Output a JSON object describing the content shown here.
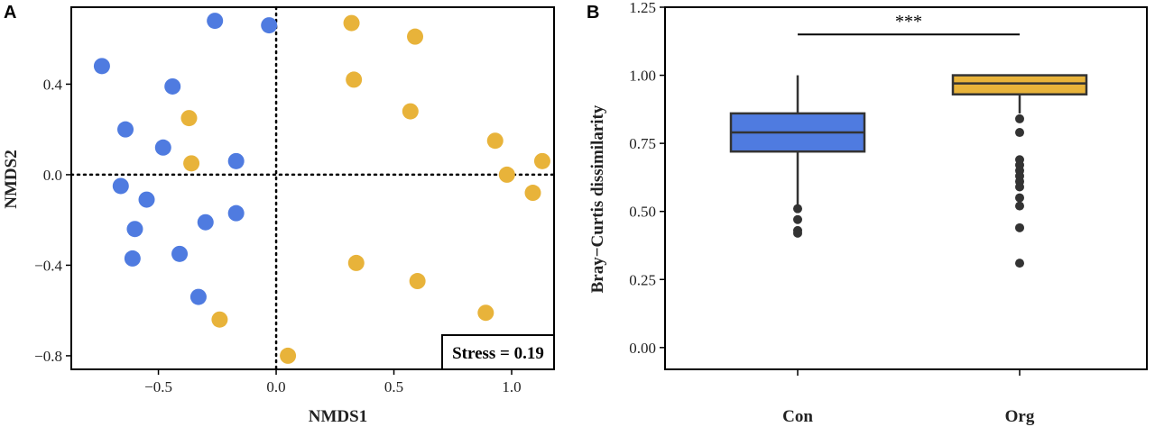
{
  "chart_data": [
    {
      "type": "scatter",
      "panel": "A",
      "xlabel": "NMDS1",
      "ylabel": "NMDS2",
      "xlim": [
        -0.87,
        1.18
      ],
      "ylim": [
        -0.86,
        0.74
      ],
      "xticks": [
        -0.5,
        0.0,
        0.5,
        1.0
      ],
      "xtick_labels": [
        "−0.5",
        "0.0",
        "0.5",
        "1.0"
      ],
      "yticks": [
        -0.8,
        -0.4,
        0.0,
        0.4
      ],
      "ytick_labels": [
        "−0.8",
        "−0.4",
        "0.0",
        "0.4"
      ],
      "reference_lines": {
        "x": 0,
        "y": 0,
        "style": "dotted"
      },
      "annotation": "Stress = 0.19",
      "annotation_position": "bottom-right",
      "grid": false,
      "series": [
        {
          "color": "#4f7be0",
          "points": [
            [
              -0.26,
              0.68
            ],
            [
              -0.03,
              0.66
            ],
            [
              -0.74,
              0.48
            ],
            [
              -0.44,
              0.39
            ],
            [
              -0.64,
              0.2
            ],
            [
              -0.48,
              0.12
            ],
            [
              -0.17,
              0.06
            ],
            [
              -0.66,
              -0.05
            ],
            [
              -0.55,
              -0.11
            ],
            [
              -0.17,
              -0.17
            ],
            [
              -0.3,
              -0.21
            ],
            [
              -0.6,
              -0.24
            ],
            [
              -0.41,
              -0.35
            ],
            [
              -0.61,
              -0.37
            ],
            [
              -0.33,
              -0.54
            ]
          ]
        },
        {
          "color": "#e8b33a",
          "points": [
            [
              0.32,
              0.67
            ],
            [
              0.59,
              0.61
            ],
            [
              0.33,
              0.42
            ],
            [
              0.57,
              0.28
            ],
            [
              -0.37,
              0.25
            ],
            [
              0.93,
              0.15
            ],
            [
              -0.36,
              0.05
            ],
            [
              1.13,
              0.06
            ],
            [
              0.98,
              0.0
            ],
            [
              1.09,
              -0.08
            ],
            [
              0.34,
              -0.39
            ],
            [
              0.6,
              -0.47
            ],
            [
              0.89,
              -0.61
            ],
            [
              -0.24,
              -0.64
            ],
            [
              0.05,
              -0.8
            ]
          ]
        }
      ]
    },
    {
      "type": "box",
      "panel": "B",
      "xlabel": "",
      "ylabel": "Bray−Curtis dissimilarity",
      "ylim": [
        -0.08,
        1.25
      ],
      "yticks": [
        0.0,
        0.25,
        0.5,
        0.75,
        1.0,
        1.25
      ],
      "ytick_labels": [
        "0.00",
        "0.25",
        "0.50",
        "0.75",
        "1.00",
        "1.25"
      ],
      "categories": [
        "Con",
        "Org"
      ],
      "grid": false,
      "significance": {
        "label": "***",
        "y": 1.15,
        "between": [
          "Con",
          "Org"
        ]
      },
      "boxes": [
        {
          "name": "Con",
          "color": "#4f7be0",
          "whisker_low": 0.52,
          "q1": 0.72,
          "median": 0.79,
          "q3": 0.86,
          "whisker_high": 1.0,
          "outliers": [
            0.51,
            0.47,
            0.43,
            0.42
          ]
        },
        {
          "name": "Org",
          "color": "#e8b33a",
          "whisker_low": 0.86,
          "q1": 0.93,
          "median": 0.97,
          "q3": 1.0,
          "whisker_high": 1.0,
          "outliers": [
            0.84,
            0.79,
            0.69,
            0.67,
            0.65,
            0.63,
            0.61,
            0.59,
            0.55,
            0.52,
            0.44,
            0.31
          ]
        }
      ]
    }
  ]
}
